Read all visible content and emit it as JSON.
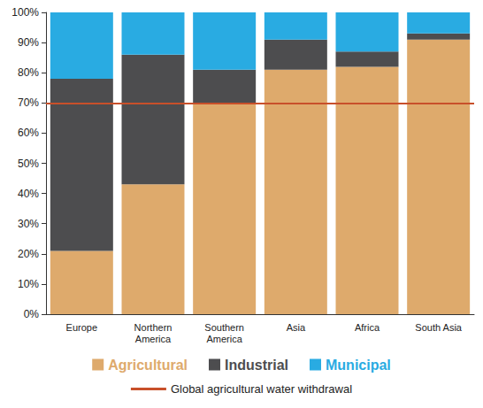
{
  "chart_data": {
    "type": "bar",
    "stacked": true,
    "categories": [
      "Europe",
      "Northern America",
      "Southern America",
      "Asia",
      "Africa",
      "South Asia"
    ],
    "series": [
      {
        "name": "Agricultural",
        "color": "#deaa6c",
        "values": [
          21,
          43,
          70,
          81,
          82,
          91
        ]
      },
      {
        "name": "Industrial",
        "color": "#4d4d4f",
        "values": [
          57,
          43,
          11,
          10,
          5,
          2
        ]
      },
      {
        "name": "Municipal",
        "color": "#29abe2",
        "values": [
          22,
          14,
          19,
          9,
          13,
          7
        ]
      }
    ],
    "reference_lines": [
      {
        "name": "Global agricultural water withdrawal",
        "value": 70,
        "color": "#c8502a"
      }
    ],
    "ylim": [
      0,
      100
    ],
    "yticks": [
      {
        "value": 0,
        "label": "0%"
      },
      {
        "value": 10,
        "label": "10%"
      },
      {
        "value": 20,
        "label": "20%"
      },
      {
        "value": 30,
        "label": "30%"
      },
      {
        "value": 40,
        "label": "40%"
      },
      {
        "value": 50,
        "label": "50%"
      },
      {
        "value": 60,
        "label": "60%"
      },
      {
        "value": 70,
        "label": "70%"
      },
      {
        "value": 80,
        "label": "80%"
      },
      {
        "value": 90,
        "label": "90%"
      },
      {
        "value": 100,
        "label": "100%"
      }
    ],
    "grid": false,
    "legend": "bottom"
  }
}
